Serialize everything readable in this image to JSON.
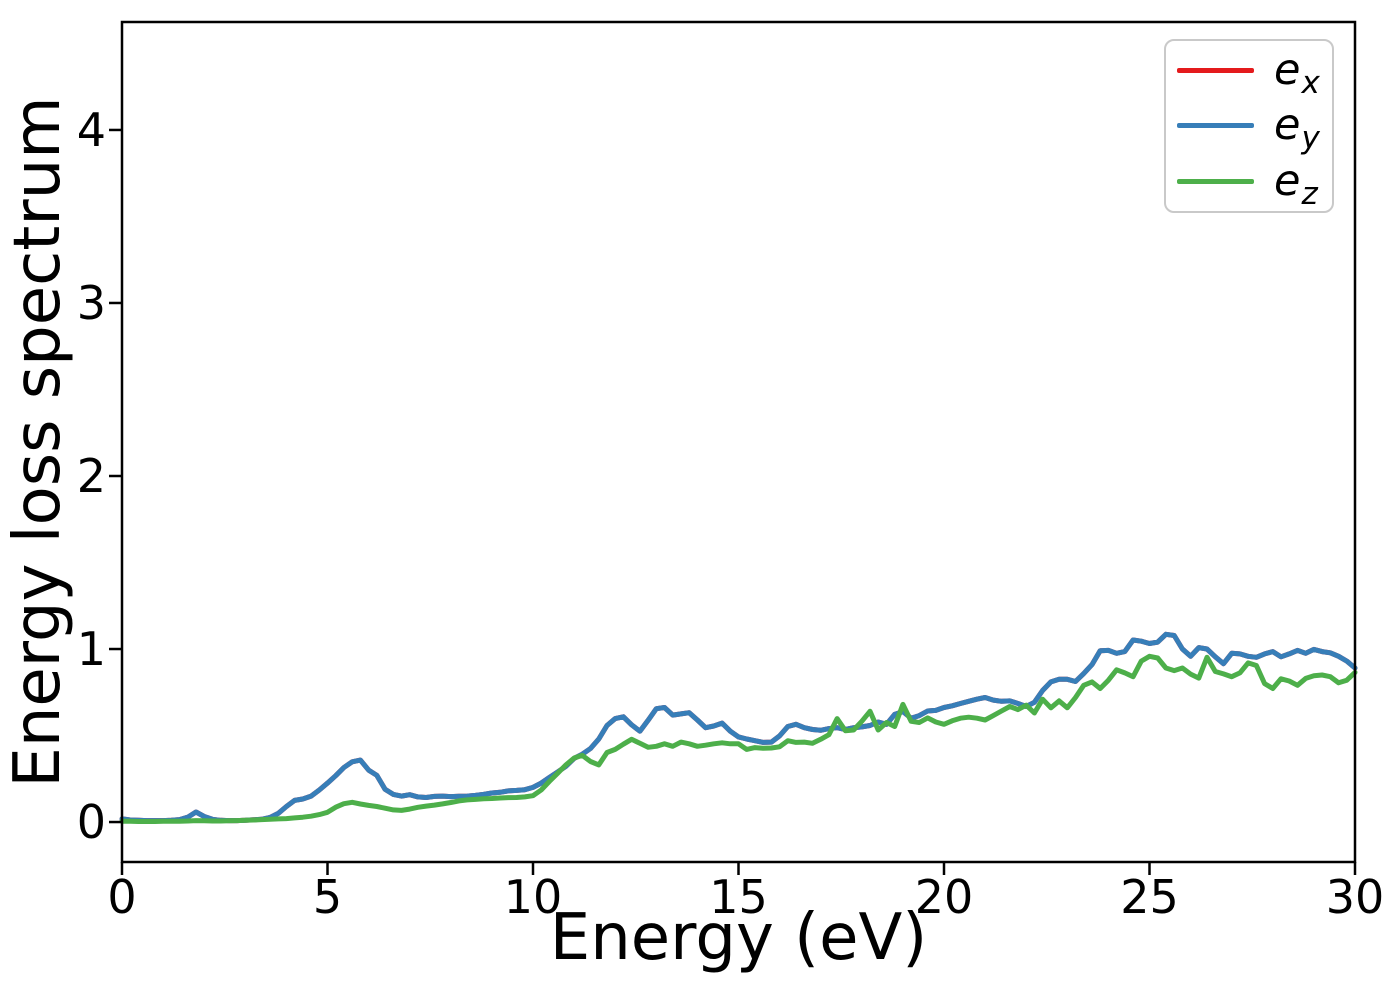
{
  "figure": {
    "background": "#ffffff",
    "xlabel": "Energy (eV)",
    "ylabel": "Energy loss spectrum"
  },
  "axes": {
    "spine_color": "#000000",
    "tick_color": "#000000",
    "xticks": [
      0,
      5,
      10,
      15,
      20,
      25,
      30
    ],
    "yticks": [
      0,
      1,
      2,
      3,
      4
    ]
  },
  "legend": {
    "position": "upper right",
    "items": [
      {
        "main": "e",
        "sub": "x",
        "color": "#e41a1c"
      },
      {
        "main": "e",
        "sub": "y",
        "color": "#377eb8"
      },
      {
        "main": "e",
        "sub": "z",
        "color": "#4daf4a"
      }
    ]
  },
  "chart_data": {
    "type": "line",
    "title": "",
    "xlabel": "Energy (eV)",
    "ylabel": "Energy loss spectrum",
    "xlim": [
      0,
      30
    ],
    "ylim_displayed": [
      -0.231,
      4.624
    ],
    "xticks": [
      0,
      5,
      10,
      15,
      20,
      25,
      30
    ],
    "yticks": [
      0,
      1,
      2,
      3,
      4
    ],
    "grid": false,
    "legend_position": "upper right",
    "x_unit": "eV",
    "x_start": 0,
    "x_step": 0.2,
    "n_points": 151,
    "note": "e_x coincides with e_y and is hidden beneath it in the plot",
    "series": [
      {
        "name": "e_x",
        "color": "#e41a1c",
        "values": [
          0.018,
          0.012,
          0.01,
          0.008,
          0.008,
          0.008,
          0.01,
          0.014,
          0.028,
          0.058,
          0.032,
          0.016,
          0.01,
          0.008,
          0.008,
          0.01,
          0.013,
          0.016,
          0.026,
          0.05,
          0.09,
          0.125,
          0.133,
          0.15,
          0.185,
          0.225,
          0.268,
          0.315,
          0.348,
          0.358,
          0.3,
          0.27,
          0.19,
          0.16,
          0.15,
          0.158,
          0.145,
          0.142,
          0.148,
          0.15,
          0.147,
          0.149,
          0.15,
          0.154,
          0.16,
          0.168,
          0.172,
          0.18,
          0.183,
          0.187,
          0.2,
          0.225,
          0.258,
          0.29,
          0.322,
          0.368,
          0.392,
          0.425,
          0.48,
          0.558,
          0.598,
          0.608,
          0.562,
          0.525,
          0.588,
          0.655,
          0.662,
          0.618,
          0.625,
          0.632,
          0.59,
          0.545,
          0.555,
          0.572,
          0.525,
          0.492,
          0.48,
          0.47,
          0.46,
          0.462,
          0.498,
          0.552,
          0.565,
          0.545,
          0.535,
          0.53,
          0.54,
          0.545,
          0.535,
          0.545,
          0.55,
          0.558,
          0.578,
          0.565,
          0.622,
          0.638,
          0.6,
          0.615,
          0.642,
          0.645,
          0.662,
          0.672,
          0.685,
          0.698,
          0.71,
          0.72,
          0.705,
          0.698,
          0.7,
          0.685,
          0.668,
          0.692,
          0.76,
          0.81,
          0.825,
          0.825,
          0.812,
          0.858,
          0.91,
          0.99,
          0.992,
          0.975,
          0.985,
          1.052,
          1.045,
          1.032,
          1.04,
          1.085,
          1.078,
          1.0,
          0.958,
          1.008,
          1.0,
          0.955,
          0.915,
          0.975,
          0.972,
          0.958,
          0.952,
          0.972,
          0.985,
          0.955,
          0.972,
          0.992,
          0.975,
          0.998,
          0.985,
          0.978,
          0.958,
          0.93,
          0.89
        ]
      },
      {
        "name": "e_y",
        "color": "#377eb8",
        "values": [
          0.018,
          0.012,
          0.01,
          0.008,
          0.008,
          0.008,
          0.01,
          0.014,
          0.028,
          0.058,
          0.032,
          0.016,
          0.01,
          0.008,
          0.008,
          0.01,
          0.013,
          0.016,
          0.026,
          0.05,
          0.09,
          0.125,
          0.133,
          0.15,
          0.185,
          0.225,
          0.268,
          0.315,
          0.348,
          0.358,
          0.3,
          0.27,
          0.19,
          0.16,
          0.15,
          0.158,
          0.145,
          0.142,
          0.148,
          0.15,
          0.147,
          0.149,
          0.15,
          0.154,
          0.16,
          0.168,
          0.172,
          0.18,
          0.183,
          0.187,
          0.2,
          0.225,
          0.258,
          0.29,
          0.322,
          0.368,
          0.392,
          0.425,
          0.48,
          0.558,
          0.598,
          0.608,
          0.562,
          0.525,
          0.588,
          0.655,
          0.662,
          0.618,
          0.625,
          0.632,
          0.59,
          0.545,
          0.555,
          0.572,
          0.525,
          0.492,
          0.48,
          0.47,
          0.46,
          0.462,
          0.498,
          0.552,
          0.565,
          0.545,
          0.535,
          0.53,
          0.54,
          0.545,
          0.535,
          0.545,
          0.55,
          0.558,
          0.578,
          0.565,
          0.622,
          0.638,
          0.6,
          0.615,
          0.642,
          0.645,
          0.662,
          0.672,
          0.685,
          0.698,
          0.71,
          0.72,
          0.705,
          0.698,
          0.7,
          0.685,
          0.668,
          0.692,
          0.76,
          0.81,
          0.825,
          0.825,
          0.812,
          0.858,
          0.91,
          0.99,
          0.992,
          0.975,
          0.985,
          1.052,
          1.045,
          1.032,
          1.04,
          1.085,
          1.078,
          1.0,
          0.958,
          1.008,
          1.0,
          0.955,
          0.915,
          0.975,
          0.972,
          0.958,
          0.952,
          0.972,
          0.985,
          0.955,
          0.972,
          0.992,
          0.975,
          0.998,
          0.985,
          0.978,
          0.958,
          0.93,
          0.89
        ]
      },
      {
        "name": "e_z",
        "color": "#4daf4a",
        "values": [
          0.005,
          0.004,
          0.003,
          0.003,
          0.003,
          0.004,
          0.004,
          0.005,
          0.006,
          0.008,
          0.007,
          0.006,
          0.006,
          0.007,
          0.008,
          0.01,
          0.012,
          0.014,
          0.016,
          0.018,
          0.02,
          0.024,
          0.028,
          0.034,
          0.043,
          0.056,
          0.086,
          0.106,
          0.114,
          0.104,
          0.096,
          0.09,
          0.08,
          0.07,
          0.067,
          0.075,
          0.085,
          0.092,
          0.098,
          0.105,
          0.113,
          0.122,
          0.128,
          0.131,
          0.134,
          0.136,
          0.139,
          0.141,
          0.142,
          0.145,
          0.152,
          0.185,
          0.235,
          0.282,
          0.33,
          0.37,
          0.385,
          0.35,
          0.33,
          0.402,
          0.42,
          0.45,
          0.478,
          0.455,
          0.432,
          0.438,
          0.452,
          0.438,
          0.462,
          0.452,
          0.438,
          0.444,
          0.452,
          0.458,
          0.452,
          0.452,
          0.42,
          0.43,
          0.426,
          0.428,
          0.435,
          0.47,
          0.46,
          0.462,
          0.455,
          0.478,
          0.505,
          0.598,
          0.528,
          0.532,
          0.582,
          0.64,
          0.532,
          0.575,
          0.552,
          0.68,
          0.582,
          0.575,
          0.602,
          0.578,
          0.565,
          0.585,
          0.6,
          0.606,
          0.6,
          0.59,
          0.615,
          0.642,
          0.668,
          0.65,
          0.675,
          0.63,
          0.71,
          0.66,
          0.7,
          0.66,
          0.72,
          0.79,
          0.81,
          0.772,
          0.82,
          0.88,
          0.862,
          0.84,
          0.93,
          0.958,
          0.948,
          0.89,
          0.875,
          0.89,
          0.855,
          0.832,
          0.952,
          0.87,
          0.856,
          0.84,
          0.862,
          0.92,
          0.905,
          0.8,
          0.772,
          0.828,
          0.815,
          0.79,
          0.83,
          0.845,
          0.85,
          0.84,
          0.805,
          0.82,
          0.865
        ]
      }
    ]
  }
}
